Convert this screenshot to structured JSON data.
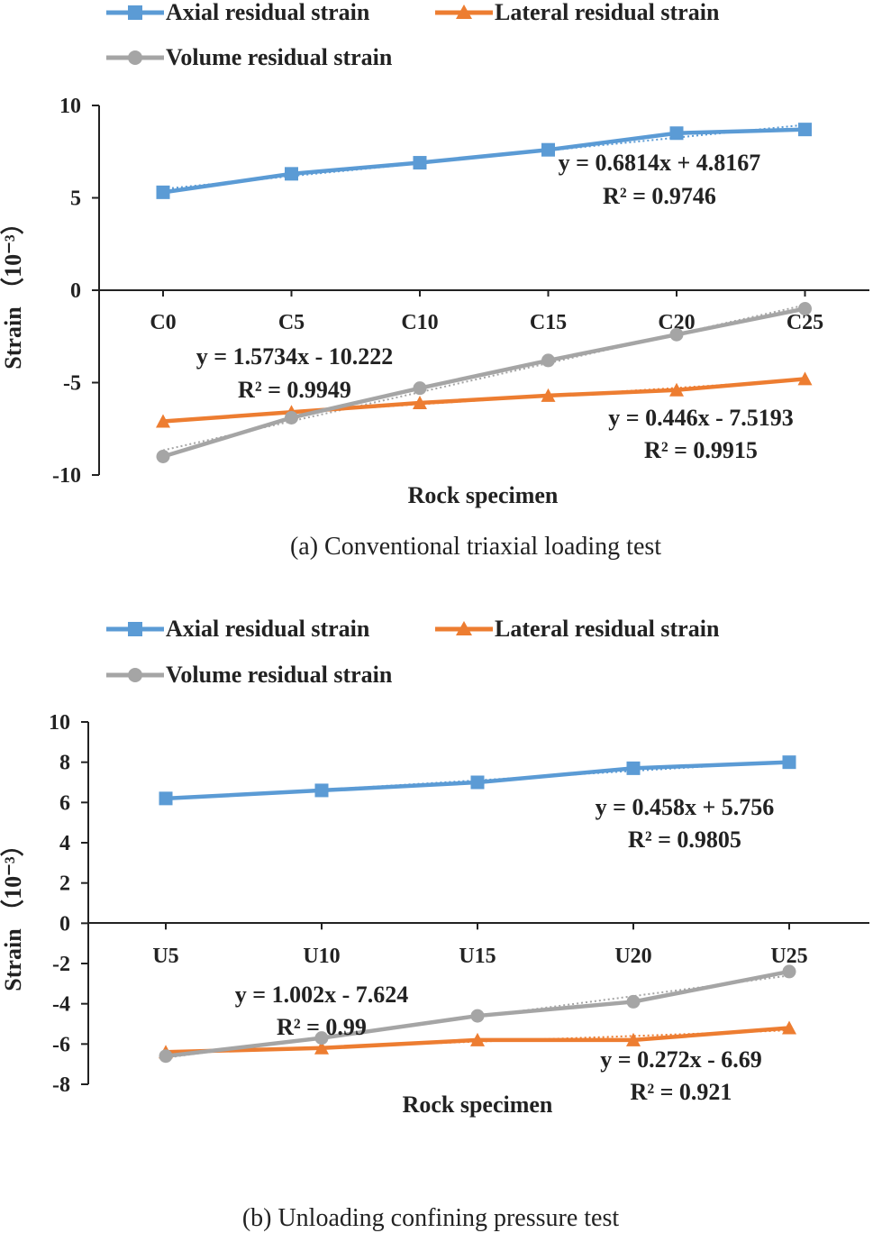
{
  "chart_data": [
    {
      "type": "line",
      "caption": "(a) Conventional triaxial loading test",
      "xlabel": "Rock specimen",
      "ylabel_main": "Strain",
      "ylabel_unit": "（10⁻³）",
      "ylim": [
        -10,
        10
      ],
      "yticks": [
        "10",
        "5",
        "0",
        "-5",
        "-10"
      ],
      "categories": [
        "C0",
        "C5",
        "C10",
        "C15",
        "C20",
        "C25"
      ],
      "series": [
        {
          "name": "Axial residual strain",
          "color": "#5B9BD5",
          "marker": "square",
          "values": [
            5.3,
            6.3,
            6.9,
            7.6,
            8.5,
            8.7
          ]
        },
        {
          "name": "Lateral residual strain",
          "color": "#ED7D31",
          "marker": "triangle",
          "values": [
            -7.1,
            -6.6,
            -6.1,
            -5.7,
            -5.4,
            -4.8
          ]
        },
        {
          "name": "Volume residual strain",
          "color": "#A5A5A5",
          "marker": "circle",
          "values": [
            -9.0,
            -6.9,
            -5.3,
            -3.8,
            -2.4,
            -1.0
          ]
        }
      ],
      "annotations": [
        {
          "equation": "y = 0.6814x + 4.8167",
          "r2": "R² = 0.9746"
        },
        {
          "equation": "y = 1.5734x - 10.222",
          "r2": "R² = 0.9949"
        },
        {
          "equation": "y = 0.446x - 7.5193",
          "r2": "R² = 0.9915"
        }
      ]
    },
    {
      "type": "line",
      "caption": "(b) Unloading confining pressure test",
      "xlabel": "Rock specimen",
      "ylabel_main": "Strain",
      "ylabel_unit": "（10⁻³）",
      "ylim": [
        -8,
        10
      ],
      "yticks": [
        "10",
        "8",
        "6",
        "4",
        "2",
        "0",
        "-2",
        "-4",
        "-6",
        "-8"
      ],
      "categories": [
        "U5",
        "U10",
        "U15",
        "U20",
        "U25"
      ],
      "series": [
        {
          "name": "Axial residual strain",
          "color": "#5B9BD5",
          "marker": "square",
          "values": [
            6.2,
            6.6,
            7.0,
            7.7,
            8.0
          ]
        },
        {
          "name": "Lateral residual strain",
          "color": "#ED7D31",
          "marker": "triangle",
          "values": [
            -6.4,
            -6.2,
            -5.8,
            -5.8,
            -5.2
          ]
        },
        {
          "name": "Volume residual strain",
          "color": "#A5A5A5",
          "marker": "circle",
          "values": [
            -6.6,
            -5.7,
            -4.6,
            -3.9,
            -2.4
          ]
        }
      ],
      "annotations": [
        {
          "equation": "y = 0.458x + 5.756",
          "r2": "R² = 0.9805"
        },
        {
          "equation": "y = 1.002x - 7.624",
          "r2": "R² = 0.99"
        },
        {
          "equation": "y = 0.272x - 6.69",
          "r2": "R² = 0.921"
        }
      ]
    }
  ]
}
